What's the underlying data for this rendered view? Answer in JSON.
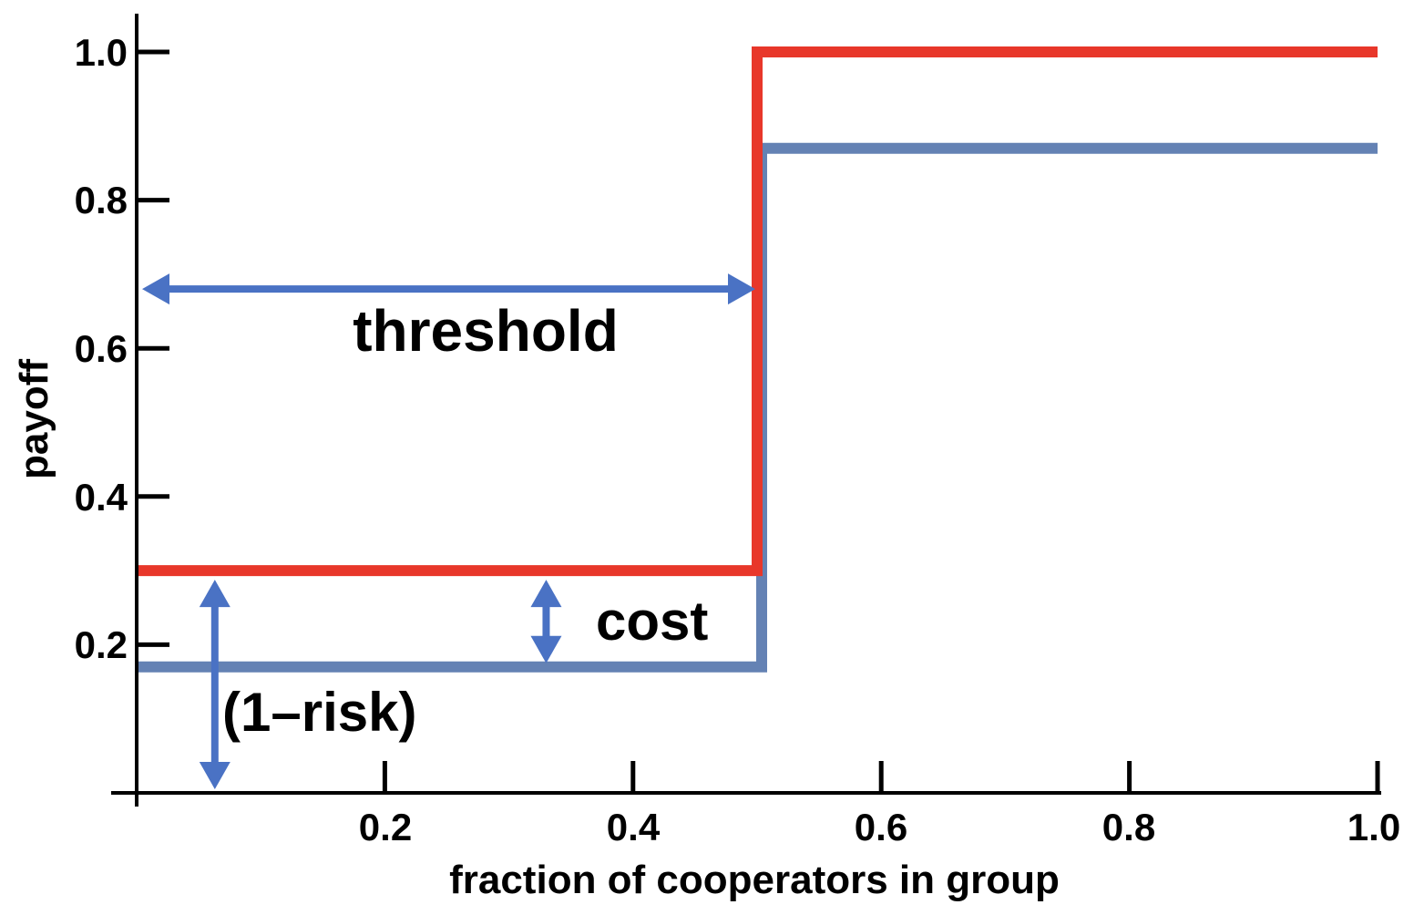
{
  "chart_data": {
    "type": "line",
    "xlabel": "fraction of cooperators in group",
    "ylabel": "payoff",
    "xlim": [
      0,
      1.0
    ],
    "ylim": [
      0,
      1.0
    ],
    "x_ticks": [
      "0.2",
      "0.4",
      "0.6",
      "0.8",
      "1.0"
    ],
    "y_ticks": [
      "0.2",
      "0.4",
      "0.6",
      "0.8",
      "1.0"
    ],
    "grid": false,
    "legend": "none",
    "series": [
      {
        "color": "#e8372a",
        "x": [
          0,
          0.5,
          0.5,
          1.0
        ],
        "y": [
          0.3,
          0.3,
          1.0,
          1.0
        ]
      },
      {
        "color": "#6482b4",
        "x": [
          0,
          0.5,
          0.5,
          1.0
        ],
        "y": [
          0.17,
          0.17,
          0.87,
          0.87
        ]
      }
    ],
    "annotations": [
      {
        "text": "threshold",
        "arrow": "horizontal",
        "from": [
          0,
          0.68
        ],
        "to": [
          0.5,
          0.68
        ],
        "color": "#4a72c4"
      },
      {
        "text": "cost",
        "arrow": "vertical",
        "from": [
          0.33,
          0.17
        ],
        "to": [
          0.33,
          0.3
        ],
        "color": "#4a72c4"
      },
      {
        "text": "(1–risk)",
        "arrow": "vertical",
        "from": [
          0.063,
          0
        ],
        "to": [
          0.063,
          0.3
        ],
        "color": "#4a72c4"
      }
    ]
  }
}
